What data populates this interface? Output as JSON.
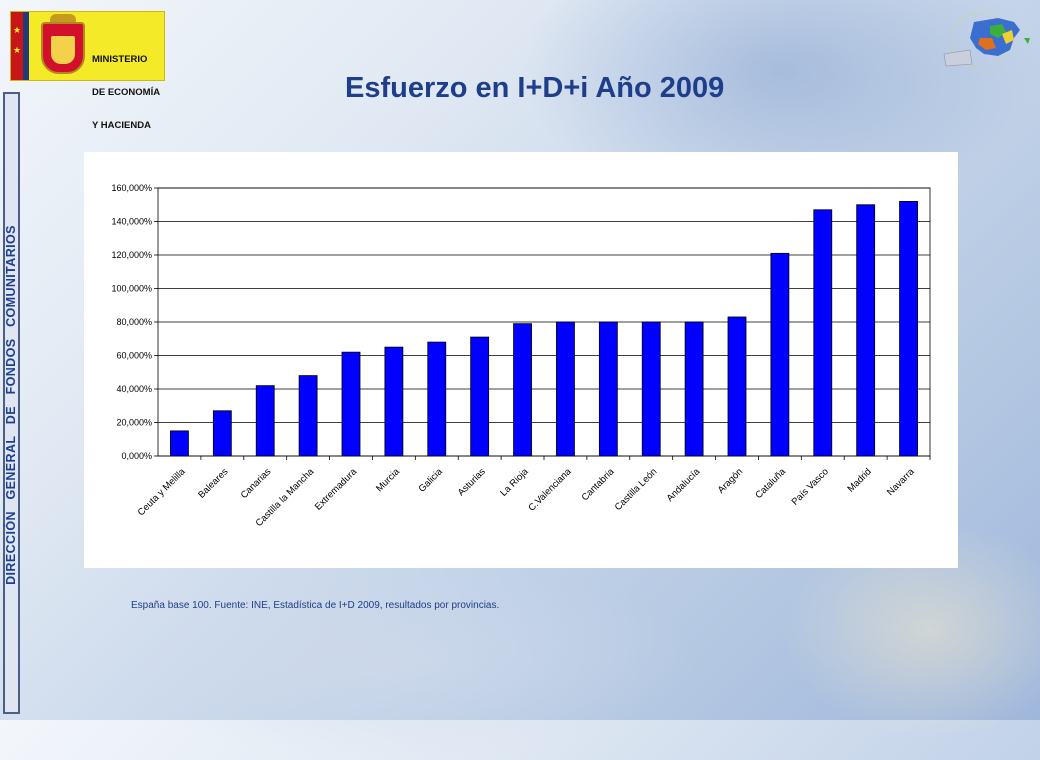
{
  "side_banner": {
    "text": "DIRECCIÓN   GENERAL   DE   FONDOS   COMUNITARIOS"
  },
  "ministry": {
    "lines": [
      "MINISTERIO",
      "DE ECONOMÍA",
      "Y HACIENDA"
    ]
  },
  "title": "Esfuerzo en I+D+i Año 2009",
  "footnote": "España base 100. Fuente: INE, Estadística de I+D 2009, resultados por provincias.",
  "colors": {
    "bar": "#0000ff",
    "title": "#1f3e8a",
    "banner_text": "#1d3f93"
  },
  "icons": [
    "ministry-coat-of-arms-logo",
    "eu-spain-map-logo"
  ],
  "chart_data": {
    "type": "bar",
    "title": "",
    "xlabel": "",
    "ylabel": "",
    "ylim": [
      0,
      160
    ],
    "yticks": [
      "0,000%",
      "20,000%",
      "40,000%",
      "60,000%",
      "80,000%",
      "100,000%",
      "120,000%",
      "140,000%",
      "160,000%"
    ],
    "grid": true,
    "legend": "none",
    "categories": [
      "Ceuta y Melilla",
      "Baleares",
      "Canarias",
      "Castilla la Mancha",
      "Extremadura",
      "Murcia",
      "Galicia",
      "Asturias",
      "La Rioja",
      "C.Valenciana",
      "Cantabria",
      "Castilla León",
      "Andalucía",
      "Aragón",
      "Cataluña",
      "País Vasco",
      "Madrid",
      "Navarra"
    ],
    "series": [
      {
        "values": [
          15,
          27,
          42,
          48,
          62,
          65,
          68,
          71,
          79,
          80,
          80,
          80,
          80,
          83,
          121,
          147,
          150,
          152
        ]
      }
    ]
  }
}
